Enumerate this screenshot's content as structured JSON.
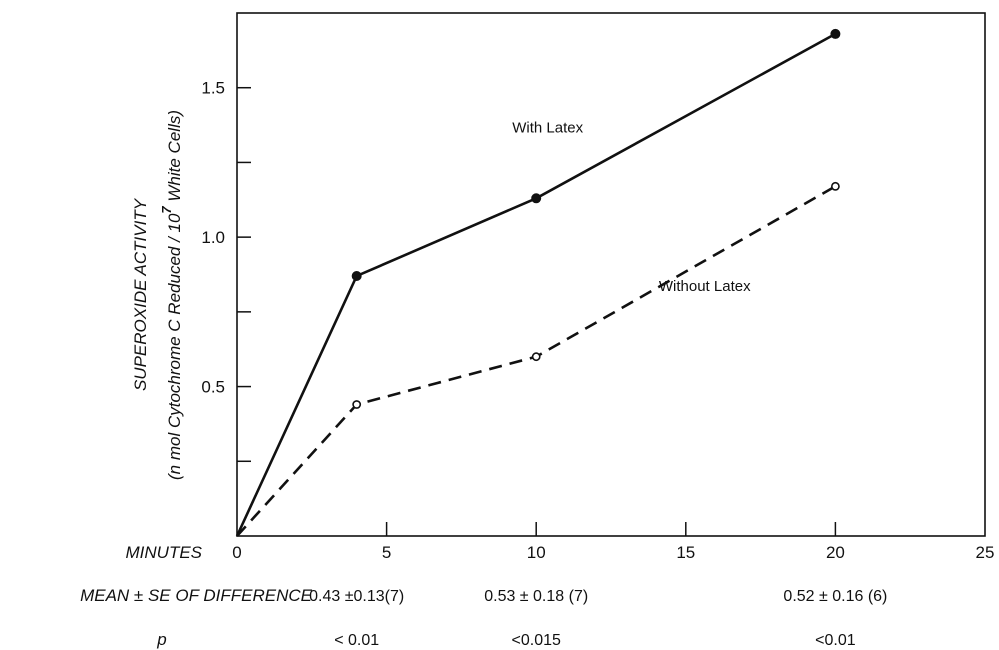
{
  "chart_data": {
    "type": "line",
    "title": "",
    "xlabel": "MINUTES",
    "ylabel_line1": "SUPEROXIDE  ACTIVITY",
    "ylabel_line2_prefix": "(n mol   Cytochrome C Reduced / 10",
    "ylabel_line2_exp": "7",
    "ylabel_line2_suffix": " White Cells)",
    "xlim": [
      0,
      25
    ],
    "ylim": [
      0,
      1.75
    ],
    "x_ticks": [
      0,
      5,
      10,
      15,
      20,
      25
    ],
    "x_tick_labels": [
      "0",
      "5",
      "10",
      "15",
      "20",
      "25"
    ],
    "y_ticks": [
      0.25,
      0.5,
      0.75,
      1.0,
      1.25,
      1.5
    ],
    "y_tick_labels": [
      {
        "value": 0.5,
        "label": "0.5"
      },
      {
        "value": 1.0,
        "label": "1.0"
      },
      {
        "value": 1.5,
        "label": "1.5"
      }
    ],
    "grid": false,
    "legend": "inline",
    "series": [
      {
        "name": "With Latex",
        "style": "solid",
        "marker": "filled-circle",
        "x": [
          0,
          4,
          10,
          20
        ],
        "y": [
          0,
          0.87,
          1.13,
          1.68
        ],
        "label_x": 9.2,
        "label_y": 1.35
      },
      {
        "name": "Without Latex",
        "style": "dashed",
        "marker": "open-circle",
        "x": [
          0,
          4,
          10,
          20
        ],
        "y": [
          0,
          0.44,
          0.6,
          1.17
        ],
        "label_x": 14.1,
        "label_y": 0.82
      }
    ],
    "stats_rows": [
      {
        "label": "MEAN ± SE OF DIFFERENCE",
        "cells": [
          {
            "x": 4,
            "text": "0.43 ±0.13(7)"
          },
          {
            "x": 10,
            "text": "0.53 ± 0.18 (7)"
          },
          {
            "x": 20,
            "text": "0.52 ± 0.16 (6)"
          }
        ]
      },
      {
        "label": "p",
        "cells": [
          {
            "x": 4,
            "text": "< 0.01"
          },
          {
            "x": 10,
            "text": "<0.015"
          },
          {
            "x": 20,
            "text": "<0.01"
          }
        ]
      }
    ]
  }
}
